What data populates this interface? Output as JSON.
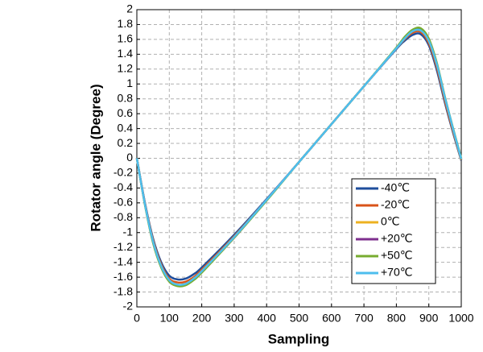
{
  "chart_data": {
    "type": "line",
    "xlabel": "Sampling",
    "ylabel": "Rotator angle (Degree)",
    "x": [
      0,
      25,
      50,
      75,
      100,
      125,
      150,
      175,
      200,
      300,
      400,
      500,
      600,
      700,
      800,
      825,
      850,
      875,
      900,
      925,
      950,
      975,
      1000
    ],
    "series": [
      {
        "name": "-40℃",
        "color": "#1f4e9c",
        "values": [
          0,
          -0.6,
          -1.08,
          -1.4,
          -1.58,
          -1.63,
          -1.62,
          -1.56,
          -1.47,
          -1.03,
          -0.55,
          -0.05,
          0.46,
          0.97,
          1.47,
          1.58,
          1.66,
          1.67,
          1.52,
          1.18,
          0.74,
          0.34,
          -0.03
        ]
      },
      {
        "name": "-20℃",
        "color": "#d95319",
        "values": [
          0,
          -0.61,
          -1.1,
          -1.43,
          -1.62,
          -1.67,
          -1.66,
          -1.6,
          -1.5,
          -1.05,
          -0.56,
          -0.05,
          0.46,
          0.97,
          1.48,
          1.6,
          1.69,
          1.7,
          1.55,
          1.22,
          0.77,
          0.36,
          -0.02
        ]
      },
      {
        "name": "0℃",
        "color": "#edb120",
        "values": [
          0,
          -0.62,
          -1.12,
          -1.45,
          -1.64,
          -1.7,
          -1.69,
          -1.62,
          -1.52,
          -1.06,
          -0.56,
          -0.05,
          0.46,
          0.97,
          1.48,
          1.61,
          1.71,
          1.72,
          1.58,
          1.25,
          0.8,
          0.38,
          -0.02
        ]
      },
      {
        "name": "+20℃",
        "color": "#7e2f8e",
        "values": [
          0,
          -0.62,
          -1.13,
          -1.46,
          -1.65,
          -1.71,
          -1.7,
          -1.63,
          -1.53,
          -1.07,
          -0.56,
          -0.05,
          0.46,
          0.97,
          1.48,
          1.62,
          1.72,
          1.73,
          1.59,
          1.26,
          0.81,
          0.39,
          -0.01
        ]
      },
      {
        "name": "+50℃",
        "color": "#77ac30",
        "values": [
          0,
          -0.63,
          -1.14,
          -1.47,
          -1.66,
          -1.72,
          -1.71,
          -1.64,
          -1.54,
          -1.07,
          -0.57,
          -0.05,
          0.46,
          0.97,
          1.49,
          1.63,
          1.73,
          1.75,
          1.61,
          1.28,
          0.82,
          0.4,
          0
        ]
      },
      {
        "name": "+70℃",
        "color": "#4dbeee",
        "values": [
          0,
          -0.62,
          -1.12,
          -1.45,
          -1.64,
          -1.7,
          -1.69,
          -1.62,
          -1.52,
          -1.06,
          -0.56,
          -0.05,
          0.46,
          0.97,
          1.48,
          1.61,
          1.71,
          1.72,
          1.58,
          1.26,
          0.81,
          0.39,
          -0.01
        ]
      }
    ],
    "xlim": [
      0,
      1000
    ],
    "xticks": [
      0,
      100,
      200,
      300,
      400,
      500,
      600,
      700,
      800,
      900,
      1000
    ],
    "ylim": [
      -2,
      2
    ],
    "yticks": [
      -2,
      -1.8,
      -1.6,
      -1.4,
      -1.2,
      -1,
      -0.8,
      -0.6,
      -0.4,
      -0.2,
      0,
      0.2,
      0.4,
      0.6,
      0.8,
      1,
      1.2,
      1.4,
      1.6,
      1.8,
      2
    ],
    "grid": true,
    "legend": "lower right"
  }
}
